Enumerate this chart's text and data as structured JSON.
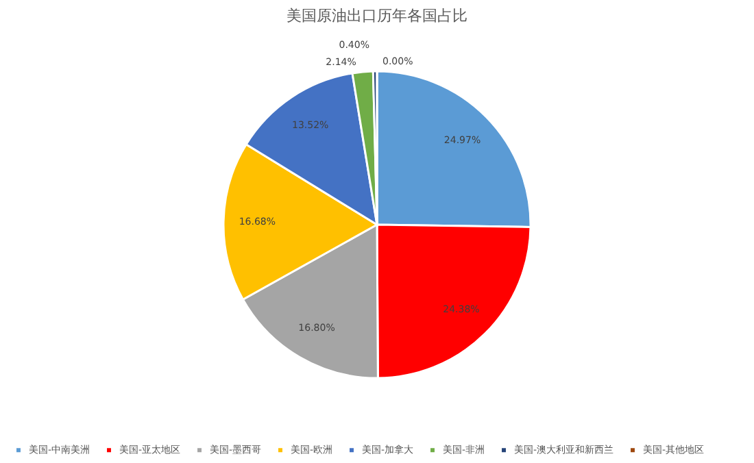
{
  "chart_data": {
    "type": "pie",
    "title": "美国原油出口历年各国占比",
    "categories": [
      "美国-中南美洲",
      "美国-亚太地区",
      "美国-墨西哥",
      "美国-欧洲",
      "美国-加拿大",
      "美国-非洲",
      "美国-澳大利亚和新西兰",
      "美国-其他地区"
    ],
    "values": [
      24.97,
      24.38,
      16.8,
      16.68,
      13.52,
      2.14,
      0.4,
      0.0
    ],
    "value_labels": [
      "24.97%",
      "24.38%",
      "16.80%",
      "16.68%",
      "13.52%",
      "2.14%",
      "0.40%",
      "0.00%"
    ],
    "colors": [
      "#5b9bd5",
      "#ff0000",
      "#a5a5a5",
      "#ffc000",
      "#4472c4",
      "#70ad47",
      "#264478",
      "#9e480e"
    ],
    "legend": "bottom"
  }
}
